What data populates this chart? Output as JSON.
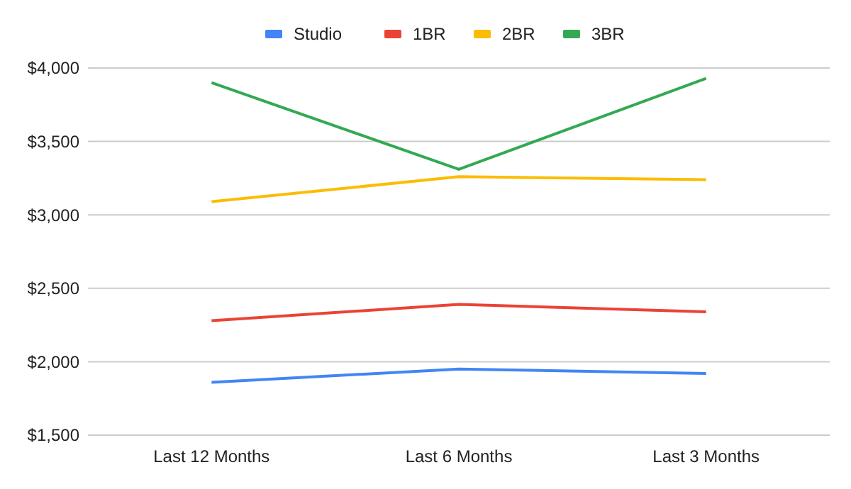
{
  "chart_data": {
    "type": "line",
    "categories": [
      "Last 12 Months",
      "Last 6 Months",
      "Last 3 Months"
    ],
    "series": [
      {
        "name": "Studio",
        "color": "#4285f4",
        "values": [
          1860,
          1950,
          1920
        ]
      },
      {
        "name": "1BR",
        "color": "#ea4335",
        "values": [
          2280,
          2390,
          2340
        ]
      },
      {
        "name": "2BR",
        "color": "#fbbc04",
        "values": [
          3090,
          3260,
          3240
        ]
      },
      {
        "name": "3BR",
        "color": "#34a853",
        "values": [
          3900,
          3310,
          3930
        ]
      }
    ],
    "ylim": [
      1500,
      4000
    ],
    "yticks": [
      {
        "value": 1500,
        "label": "$1,500"
      },
      {
        "value": 2000,
        "label": "$2,000"
      },
      {
        "value": 2500,
        "label": "$2,500"
      },
      {
        "value": 3000,
        "label": "$3,000"
      },
      {
        "value": 3500,
        "label": "$3,500"
      },
      {
        "value": 4000,
        "label": "$4,000"
      }
    ],
    "grid": "y",
    "legend": "top",
    "marker": "none",
    "line_style": "solid"
  }
}
